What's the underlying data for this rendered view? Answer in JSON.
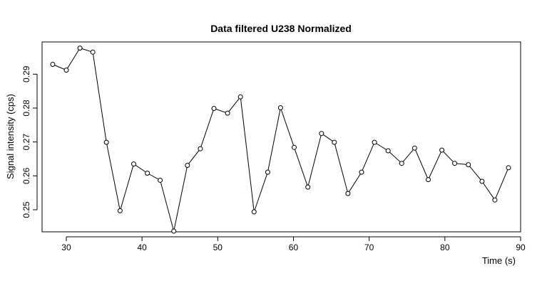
{
  "chart_data": {
    "type": "line",
    "title": "Data filtered U238 Normalized",
    "xlabel": "Time (s)",
    "ylabel": "Signal intensity (cps)",
    "xlim": [
      26.8,
      90.0
    ],
    "ylim": [
      0.2435,
      0.2995
    ],
    "x_ticks": [
      30,
      40,
      50,
      60,
      70,
      80,
      90
    ],
    "y_ticks": [
      0.25,
      0.26,
      0.27,
      0.28,
      0.29
    ],
    "x_tick_labels": [
      "30",
      "40",
      "50",
      "60",
      "70",
      "80",
      "90"
    ],
    "y_tick_labels": [
      "0.25",
      "0.26",
      "0.27",
      "0.28",
      "0.29"
    ],
    "markers": "open-circle",
    "series": [
      {
        "x": [
          28.2,
          30.0,
          31.8,
          33.5,
          35.3,
          37.1,
          38.9,
          40.7,
          42.4,
          44.2,
          46.0,
          47.7,
          49.5,
          51.3,
          53.0,
          54.8,
          56.6,
          58.3,
          60.1,
          61.9,
          63.7,
          65.4,
          67.2,
          69.0,
          70.7,
          72.5,
          74.3,
          76.0,
          77.8,
          79.6,
          81.3,
          83.1,
          84.9,
          86.6,
          88.4
        ],
        "y": [
          0.2929,
          0.2912,
          0.2977,
          0.2965,
          0.2699,
          0.2497,
          0.2635,
          0.2608,
          0.2587,
          0.2437,
          0.2631,
          0.268,
          0.2799,
          0.2785,
          0.2833,
          0.2494,
          0.2611,
          0.2801,
          0.2684,
          0.2567,
          0.2725,
          0.2699,
          0.2548,
          0.2611,
          0.2699,
          0.2674,
          0.2637,
          0.2682,
          0.2589,
          0.2676,
          0.2637,
          0.2633,
          0.2584,
          0.2529,
          0.2624
        ]
      }
    ]
  }
}
